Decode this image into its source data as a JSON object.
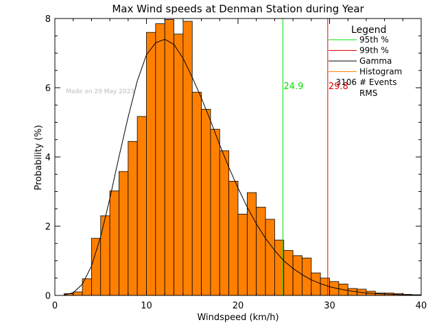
{
  "chart_data": {
    "type": "bar",
    "title": "Max Wind speeds at Denman Station during Year",
    "xlabel": "Windspeed (km/h)",
    "ylabel": "Probability  (%)",
    "xlim": [
      0,
      40
    ],
    "ylim": [
      0,
      8
    ],
    "x_ticks": [
      0,
      10,
      20,
      30,
      40
    ],
    "y_ticks": [
      0,
      2,
      4,
      6,
      8
    ],
    "bin_width": 1,
    "bin_starts": [
      1,
      2,
      3,
      4,
      5,
      6,
      7,
      8,
      9,
      10,
      11,
      12,
      13,
      14,
      15,
      16,
      17,
      18,
      19,
      20,
      21,
      22,
      23,
      24,
      25,
      26,
      27,
      28,
      29,
      30,
      31,
      32,
      33,
      34,
      35,
      36,
      37,
      38,
      39
    ],
    "values": [
      0.05,
      0.1,
      0.48,
      1.65,
      2.3,
      3.02,
      3.58,
      4.45,
      5.17,
      7.6,
      7.85,
      7.97,
      7.55,
      7.92,
      5.87,
      5.38,
      4.8,
      4.18,
      3.3,
      2.35,
      2.97,
      2.55,
      2.2,
      1.6,
      1.3,
      1.15,
      1.08,
      0.65,
      0.5,
      0.4,
      0.33,
      0.2,
      0.18,
      0.12,
      0.07,
      0.07,
      0.05,
      0.03,
      0.02
    ],
    "gamma_curve": {
      "x": [
        1,
        2,
        3,
        4,
        5,
        6,
        7,
        8,
        9,
        10,
        11,
        12,
        13,
        14,
        15,
        16,
        17,
        18,
        19,
        20,
        21,
        22,
        23,
        24,
        25,
        26,
        27,
        28,
        29,
        30,
        31,
        32,
        33,
        34,
        35,
        36,
        37,
        38,
        39,
        40
      ],
      "y": [
        0.01,
        0.08,
        0.32,
        0.85,
        1.7,
        2.8,
        4.0,
        5.15,
        6.2,
        6.95,
        7.3,
        7.4,
        7.25,
        6.85,
        6.3,
        5.7,
        5.05,
        4.35,
        3.7,
        3.1,
        2.55,
        2.07,
        1.65,
        1.3,
        1.0,
        0.78,
        0.6,
        0.45,
        0.34,
        0.25,
        0.19,
        0.14,
        0.1,
        0.07,
        0.05,
        0.04,
        0.03,
        0.02,
        0.01,
        0.01
      ]
    },
    "percentile_lines": [
      {
        "name": "95th %",
        "x": 24.9,
        "label": "24.9",
        "color": "#00dd00"
      },
      {
        "name": "99th %",
        "x": 29.8,
        "label": "29.8",
        "color": "#dd0000"
      }
    ],
    "colors": {
      "histogram": "#ff8000",
      "gamma": "#000000"
    },
    "legend": {
      "title": "Legend",
      "placement": "top-right",
      "entries": [
        {
          "label": "95th %",
          "color": "#00dd00"
        },
        {
          "label": "99th %",
          "color": "#dd0000"
        },
        {
          "label": "Gamma",
          "color": "#000000"
        },
        {
          "label": "Histogram",
          "color": "#ff8000"
        }
      ],
      "stats": [
        {
          "value": "3106",
          "label": "# Events"
        },
        {
          "value": "",
          "label": "RMS"
        }
      ]
    },
    "watermark": "Made on 29 May 2023"
  }
}
